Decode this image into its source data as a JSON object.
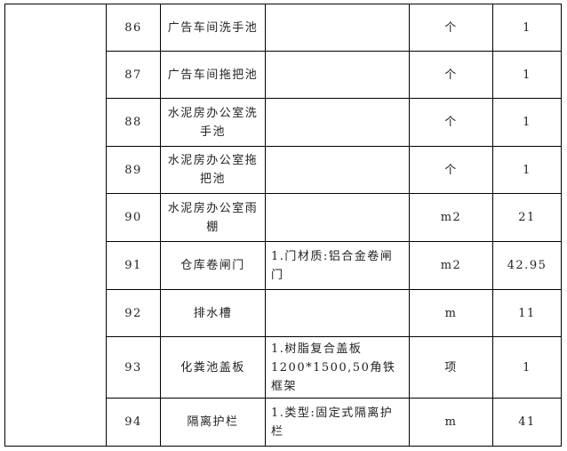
{
  "rows": [
    {
      "no": "86",
      "name": "广告车间洗手池",
      "desc": "",
      "unit": "个",
      "qty": "1"
    },
    {
      "no": "87",
      "name": "广告车间拖把池",
      "desc": "",
      "unit": "个",
      "qty": "1"
    },
    {
      "no": "88",
      "name": "水泥房办公室洗手池",
      "desc": "",
      "unit": "个",
      "qty": "1"
    },
    {
      "no": "89",
      "name": "水泥房办公室拖把池",
      "desc": "",
      "unit": "个",
      "qty": "1"
    },
    {
      "no": "90",
      "name": "水泥房办公室雨棚",
      "desc": "",
      "unit": "m2",
      "qty": "21"
    },
    {
      "no": "91",
      "name": "仓库卷闸门",
      "desc": "1.门材质:铝合金卷闸门",
      "unit": "m2",
      "qty": "42.95"
    },
    {
      "no": "92",
      "name": "排水槽",
      "desc": "",
      "unit": "m",
      "qty": "11"
    },
    {
      "no": "93",
      "name": "化粪池盖板",
      "desc": "1.树脂复合盖板1200*1500,50角铁框架",
      "unit": "项",
      "qty": "1"
    },
    {
      "no": "94",
      "name": "隔离护栏",
      "desc": "1.类型:固定式隔离护栏",
      "unit": "m",
      "qty": "41"
    }
  ]
}
